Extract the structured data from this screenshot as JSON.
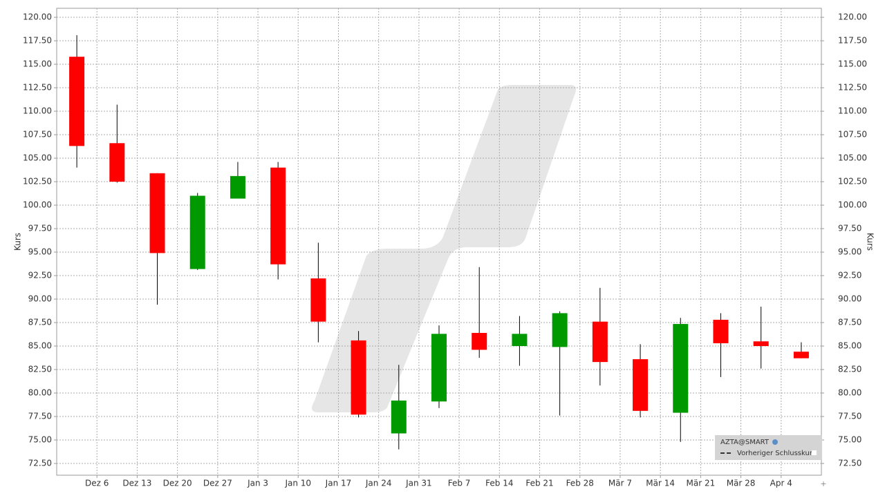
{
  "chart_data": {
    "type": "candlestick",
    "y_label": "Kurs",
    "categories": [
      null,
      null,
      null,
      null,
      null,
      null,
      null,
      null,
      null,
      null,
      null,
      null,
      null,
      null,
      null,
      null,
      null,
      null,
      null
    ],
    "open": [
      115.8,
      106.6,
      103.4,
      93.2,
      100.7,
      104.0,
      92.2,
      85.6,
      75.7,
      79.1,
      86.4,
      85.0,
      84.9,
      87.6,
      83.6,
      77.9,
      87.8,
      85.5,
      84.4
    ],
    "close": [
      106.3,
      102.5,
      94.9,
      101.0,
      103.1,
      93.7,
      87.6,
      77.7,
      79.2,
      86.3,
      84.6,
      86.3,
      88.5,
      83.3,
      78.1,
      87.35,
      85.3,
      85.0,
      83.7
    ],
    "high": [
      118.1,
      110.7,
      103.4,
      101.3,
      104.6,
      104.6,
      96.0,
      86.6,
      83.0,
      87.2,
      93.4,
      88.2,
      88.7,
      91.2,
      85.2,
      88.0,
      88.5,
      89.2,
      85.4
    ],
    "low": [
      104.0,
      102.4,
      89.4,
      93.1,
      100.7,
      92.1,
      85.4,
      77.4,
      74.0,
      78.4,
      83.75,
      82.9,
      77.6,
      80.8,
      77.4,
      74.8,
      81.7,
      82.6,
      83.7
    ],
    "up_color": "#009900",
    "down_color": "#ff0000",
    "xlim": [
      -0.5,
      18.5
    ],
    "xticks": [
      {
        "value": 0.5,
        "label": "Dez 6"
      },
      {
        "value": 1.5,
        "label": "Dez 13"
      },
      {
        "value": 2.5,
        "label": "Dez 20"
      },
      {
        "value": 3.5,
        "label": "Dez 27"
      },
      {
        "value": 4.5,
        "label": "Jan 3"
      },
      {
        "value": 5.5,
        "label": "Jan 10"
      },
      {
        "value": 6.5,
        "label": "Jan 17"
      },
      {
        "value": 7.5,
        "label": "Jan 24"
      },
      {
        "value": 8.5,
        "label": "Jan 31"
      },
      {
        "value": 9.5,
        "label": "Feb 7"
      },
      {
        "value": 10.5,
        "label": "Feb 14"
      },
      {
        "value": 11.5,
        "label": "Feb 21"
      },
      {
        "value": 12.5,
        "label": "Feb 28"
      },
      {
        "value": 13.5,
        "label": "Mär 7"
      },
      {
        "value": 14.5,
        "label": "Mär 14"
      },
      {
        "value": 15.5,
        "label": "Mär 21"
      },
      {
        "value": 16.5,
        "label": "Mär 28"
      },
      {
        "value": 17.5,
        "label": "Apr 4"
      }
    ],
    "ylim": [
      71.25,
      120.96
    ],
    "yticks": [
      {
        "value": 72.5,
        "label": "72.50"
      },
      {
        "value": 75,
        "label": "75.00"
      },
      {
        "value": 77.5,
        "label": "77.50"
      },
      {
        "value": 80,
        "label": "80.00"
      },
      {
        "value": 82.5,
        "label": "82.50"
      },
      {
        "value": 85,
        "label": "85.00"
      },
      {
        "value": 87.5,
        "label": "87.50"
      },
      {
        "value": 90,
        "label": "90.00"
      },
      {
        "value": 92.5,
        "label": "92.50"
      },
      {
        "value": 95,
        "label": "95.00"
      },
      {
        "value": 97.5,
        "label": "97.50"
      },
      {
        "value": 100,
        "label": "100.00"
      },
      {
        "value": 102.5,
        "label": "102.50"
      },
      {
        "value": 105,
        "label": "105.00"
      },
      {
        "value": 107.5,
        "label": "107.50"
      },
      {
        "value": 110,
        "label": "110.00"
      },
      {
        "value": 112.5,
        "label": "112.50"
      },
      {
        "value": 115,
        "label": "115.00"
      },
      {
        "value": 117.5,
        "label": "117.50"
      },
      {
        "value": 120,
        "label": "120.00"
      }
    ],
    "grid": true,
    "legend": [
      "AZTA@SMART",
      "Vorheriger Schlusskurs"
    ]
  }
}
